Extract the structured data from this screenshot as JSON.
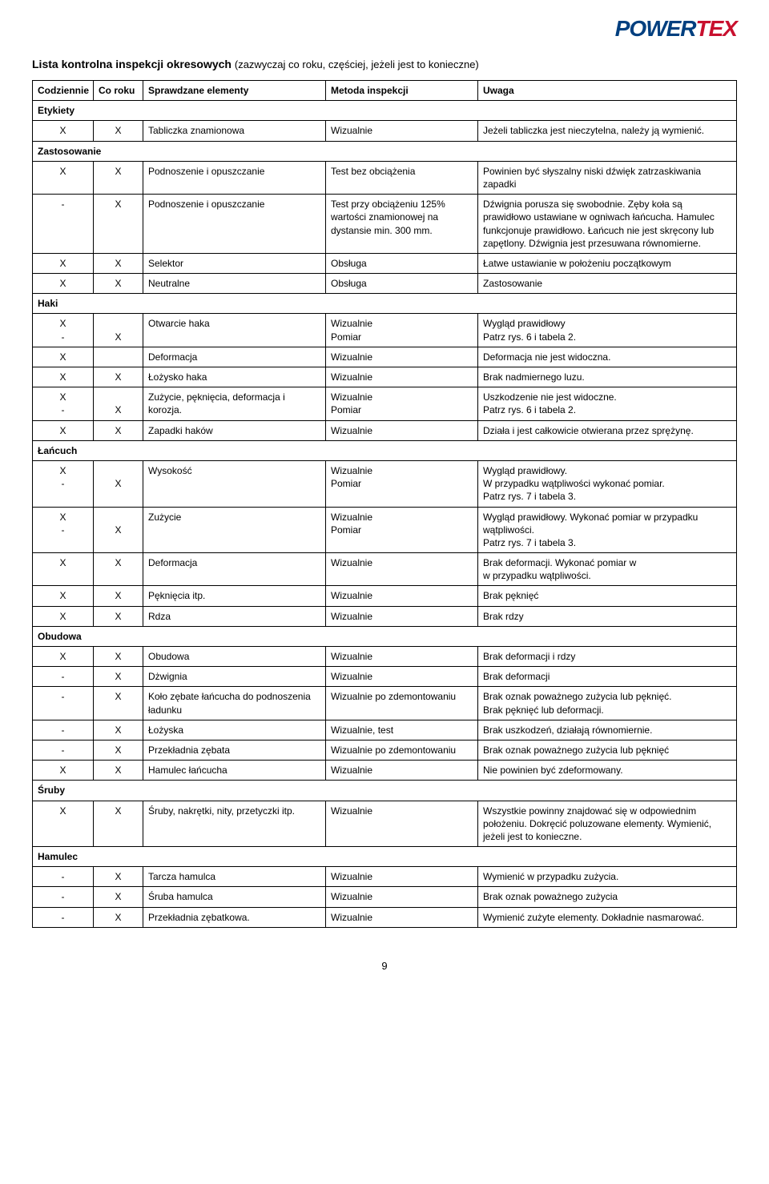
{
  "logo": {
    "part1": "POWER",
    "part2": "TEX"
  },
  "title_bold": "Lista kontrolna inspekcji okresowych",
  "title_rest": "(zazwyczaj co roku, częściej, jeżeli jest to konieczne)",
  "columns": [
    "Codziennie",
    "Co roku",
    "Sprawdzane elementy",
    "Metoda inspekcji",
    "Uwaga"
  ],
  "page_number": "9",
  "sections": [
    {
      "name": "Etykiety",
      "rows": [
        [
          "X",
          "X",
          "Tabliczka znamionowa",
          "Wizualnie",
          "Jeżeli tabliczka jest nieczytelna, należy ją wymienić."
        ]
      ]
    },
    {
      "name": "Zastosowanie",
      "rows": [
        [
          "X",
          "X",
          "Podnoszenie i opuszczanie",
          "Test bez obciążenia",
          "Powinien być słyszalny niski dźwięk zatrzaskiwania zapadki"
        ],
        [
          "-",
          "X",
          "Podnoszenie i opuszczanie",
          "Test przy obciążeniu 125% wartości znamionowej na dystansie min. 300 mm.",
          "Dźwignia porusza się swobodnie. Zęby koła są prawidłowo ustawiane w ogniwach łańcucha. Hamulec funkcjonuje prawidłowo. Łańcuch nie jest skręcony lub zapętlony. Dźwignia jest przesuwana równomierne."
        ],
        [
          "X",
          "X",
          "Selektor",
          "Obsługa",
          "Łatwe ustawianie w położeniu początkowym"
        ],
        [
          "X",
          "X",
          "Neutralne",
          "Obsługa",
          "Zastosowanie"
        ]
      ]
    },
    {
      "name": "Haki",
      "rows": [
        [
          "X\n-",
          "\nX",
          "Otwarcie haka",
          "Wizualnie\nPomiar",
          "Wygląd prawidłowy\nPatrz rys. 6 i tabela 2."
        ],
        [
          "X",
          "",
          "Deformacja",
          "Wizualnie",
          "Deformacja nie jest widoczna."
        ],
        [
          "X",
          "X",
          "Łożysko haka",
          "Wizualnie",
          "Brak nadmiernego luzu."
        ],
        [
          "X\n-",
          "\nX",
          "Zużycie, pęknięcia, deformacja i korozja.",
          "Wizualnie\nPomiar",
          "Uszkodzenie nie jest widoczne.\nPatrz rys. 6 i tabela 2."
        ],
        [
          "X",
          "X",
          "Zapadki haków",
          "Wizualnie",
          "Działa i jest całkowicie otwierana przez sprężynę."
        ]
      ]
    },
    {
      "name": "Łańcuch",
      "rows": [
        [
          "X\n-",
          "\nX",
          "Wysokość",
          "Wizualnie\nPomiar",
          "Wygląd prawidłowy.\nW przypadku wątpliwości wykonać pomiar.\nPatrz rys. 7 i tabela 3."
        ],
        [
          "X\n-",
          "\nX",
          "Zużycie",
          "Wizualnie\nPomiar",
          "Wygląd prawidłowy. Wykonać pomiar w przypadku wątpliwości.\nPatrz rys. 7 i tabela 3."
        ],
        [
          "X",
          "X",
          "Deformacja",
          "Wizualnie",
          "Brak deformacji. Wykonać pomiar w\nw przypadku wątpliwości."
        ],
        [
          "X",
          "X",
          "Pęknięcia itp.",
          "Wizualnie",
          "Brak pęknięć"
        ],
        [
          "X",
          "X",
          "Rdza",
          "Wizualnie",
          "Brak rdzy"
        ]
      ]
    },
    {
      "name": "Obudowa",
      "rows": [
        [
          "X",
          "X",
          "Obudowa",
          "Wizualnie",
          "Brak deformacji i rdzy"
        ],
        [
          "-",
          "X",
          "Dżwignia",
          "Wizualnie",
          "Brak deformacji"
        ],
        [
          "-",
          "X",
          "Koło zębate łańcucha do podnoszenia ładunku",
          "Wizualnie po zdemontowaniu",
          "Brak oznak poważnego zużycia lub pęknięć.\nBrak pęknięć lub deformacji."
        ],
        [
          "-",
          "X",
          "Łożyska",
          "Wizualnie, test",
          "Brak uszkodzeń, działają równomiernie."
        ],
        [
          "-",
          "X",
          "Przekładnia zębata",
          "Wizualnie po zdemontowaniu",
          "Brak oznak poważnego zużycia lub pęknięć"
        ],
        [
          "X",
          "X",
          "Hamulec łańcucha",
          "Wizualnie",
          "Nie powinien być zdeformowany."
        ]
      ]
    },
    {
      "name": "Śruby",
      "rows": [
        [
          "X",
          "X",
          "Śruby, nakrętki, nity, przetyczki itp.",
          "Wizualnie",
          "Wszystkie powinny znajdować się w odpowiednim położeniu. Dokręcić poluzowane elementy. Wymienić, jeżeli jest to konieczne."
        ]
      ]
    },
    {
      "name": "Hamulec",
      "rows": [
        [
          "-",
          "X",
          "Tarcza hamulca",
          "Wizualnie",
          "Wymienić w przypadku zużycia."
        ],
        [
          "-",
          "X",
          "Śruba hamulca",
          "Wizualnie",
          "Brak oznak poważnego zużycia"
        ],
        [
          "-",
          "X",
          "Przekładnia zębatkowa.",
          "Wizualnie",
          "Wymienić zużyte elementy. Dokładnie nasmarować."
        ]
      ]
    }
  ]
}
